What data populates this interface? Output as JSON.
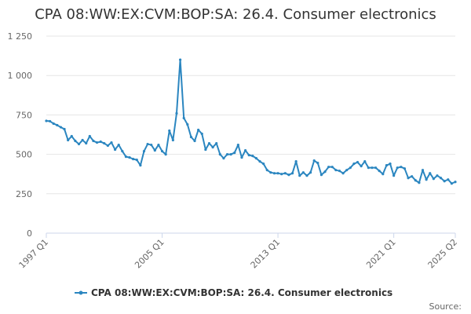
{
  "colors": {
    "series": "#2b86c0",
    "grid": "#e6e6e6",
    "axis": "#ccd6eb",
    "text": "#333333",
    "tick_text": "#666666"
  },
  "chart_data": {
    "type": "line",
    "title": "CPA 08:WW:EX:CVM:BOP:SA: 26.4. Consumer electronics",
    "xlabel": "",
    "ylabel": "",
    "ylim": [
      0,
      1250
    ],
    "yticks": [
      0,
      250,
      500,
      750,
      1000,
      1250
    ],
    "ytick_labels": [
      "0",
      "250",
      "500",
      "750",
      "1 000",
      "1 250"
    ],
    "xtick_labels": [
      "1997 Q1",
      "2005 Q1",
      "2013 Q1",
      "2021 Q1",
      "2025 Q2"
    ],
    "xtick_index": [
      0,
      32,
      64,
      96,
      113
    ],
    "grid": true,
    "legend_position": "bottom-center",
    "series": [
      {
        "name": "CPA 08:WW:EX:CVM:BOP:SA: 26.4. Consumer electronics",
        "values": [
          712,
          710,
          695,
          685,
          672,
          660,
          590,
          615,
          585,
          565,
          590,
          570,
          615,
          585,
          575,
          580,
          570,
          555,
          575,
          530,
          560,
          520,
          485,
          480,
          470,
          465,
          430,
          520,
          565,
          560,
          525,
          560,
          520,
          500,
          650,
          590,
          760,
          1100,
          730,
          690,
          610,
          585,
          655,
          630,
          530,
          570,
          545,
          570,
          500,
          475,
          500,
          500,
          510,
          560,
          480,
          525,
          495,
          490,
          475,
          455,
          440,
          400,
          385,
          380,
          380,
          375,
          380,
          370,
          380,
          455,
          365,
          385,
          365,
          385,
          460,
          445,
          370,
          390,
          420,
          420,
          400,
          395,
          380,
          400,
          415,
          440,
          450,
          425,
          455,
          415,
          415,
          415,
          395,
          375,
          430,
          440,
          365,
          415,
          420,
          410,
          350,
          360,
          335,
          320,
          400,
          340,
          380,
          345,
          365,
          350,
          330,
          340,
          315,
          325
        ]
      }
    ]
  },
  "legend": {
    "label": "CPA 08:WW:EX:CVM:BOP:SA: 26.4. Consumer electronics"
  },
  "footer": {
    "source_label": "Source:"
  }
}
